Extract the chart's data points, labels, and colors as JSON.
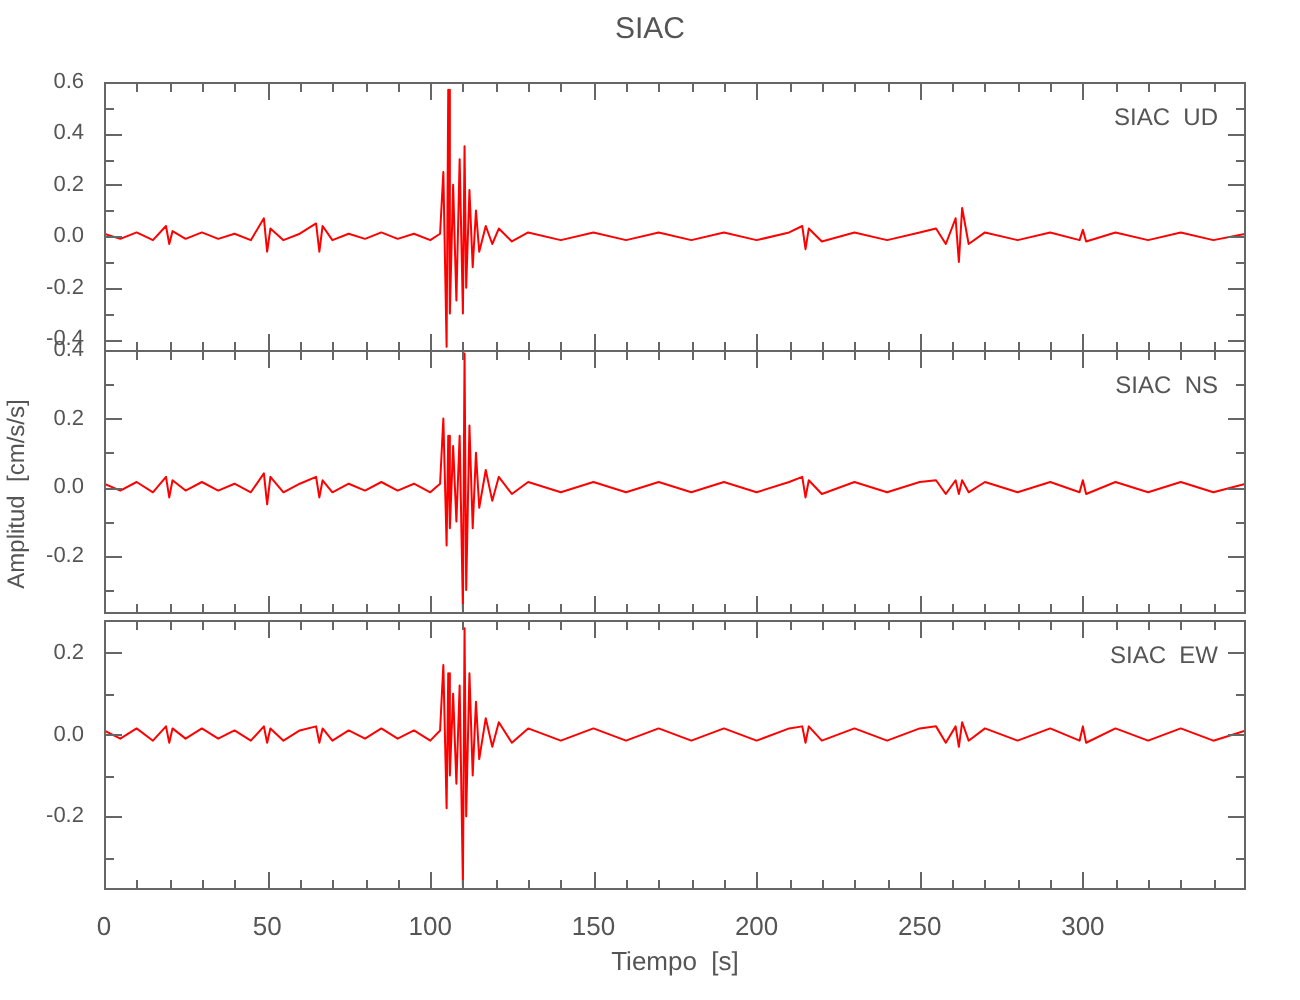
{
  "chart_data": [
    {
      "type": "line",
      "title": "SIAC",
      "annotations": [
        "SIAC  UD"
      ],
      "color": "#ff0000",
      "tick_labels": "y",
      "xlim": [
        0,
        350
      ],
      "xticks": [
        0,
        {
          "value": 10,
          "label": null
        },
        {
          "value": 20,
          "label": null
        },
        {
          "value": 30,
          "label": null
        },
        {
          "value": 40,
          "label": null
        },
        50,
        {
          "value": 60,
          "label": null
        },
        {
          "value": 70,
          "label": null
        },
        {
          "value": 80,
          "label": null
        },
        {
          "value": 90,
          "label": null
        },
        100,
        {
          "value": 110,
          "label": null
        },
        {
          "value": 120,
          "label": null
        },
        {
          "value": 130,
          "label": null
        },
        {
          "value": 140,
          "label": null
        },
        150,
        {
          "value": 160,
          "label": null
        },
        {
          "value": 170,
          "label": null
        },
        {
          "value": 180,
          "label": null
        },
        {
          "value": 190,
          "label": null
        },
        200,
        {
          "value": 210,
          "label": null
        },
        {
          "value": 220,
          "label": null
        },
        {
          "value": 230,
          "label": null
        },
        {
          "value": 240,
          "label": null
        },
        250,
        {
          "value": 260,
          "label": null
        },
        {
          "value": 270,
          "label": null
        },
        {
          "value": 280,
          "label": null
        },
        {
          "value": 290,
          "label": null
        },
        300,
        {
          "value": 310,
          "label": null
        },
        {
          "value": 320,
          "label": null
        },
        {
          "value": 330,
          "label": null
        },
        {
          "value": 340,
          "label": null
        }
      ],
      "ylim": [
        -0.45,
        0.6
      ],
      "yticks": [
        -0.4,
        {
          "value": -0.3,
          "label": null
        },
        -0.2,
        {
          "value": -0.1,
          "label": null
        },
        {
          "value": 0,
          "label": "0.0"
        },
        {
          "value": 0.1,
          "label": null
        },
        0.2,
        {
          "value": 0.3,
          "label": null
        },
        0.4,
        {
          "value": 0.5,
          "label": null
        },
        0.6
      ],
      "x": [
        0,
        5,
        10,
        15,
        19,
        20,
        21,
        25,
        30,
        35,
        40,
        45,
        49,
        50,
        51,
        55,
        60,
        65,
        66,
        67,
        70,
        75,
        80,
        85,
        90,
        95,
        100,
        103,
        104,
        105,
        105.5,
        106,
        107,
        108,
        109,
        110,
        110.5,
        111,
        112,
        113,
        114,
        115,
        117,
        119,
        121,
        125,
        130,
        140,
        150,
        160,
        170,
        180,
        190,
        200,
        210,
        214,
        215,
        216,
        220,
        230,
        240,
        250,
        255,
        258,
        261,
        262,
        263,
        265,
        270,
        280,
        290,
        299,
        300,
        301,
        310,
        320,
        330,
        340,
        350
      ],
      "values": [
        0.01,
        -0.01,
        0.015,
        -0.015,
        0.04,
        -0.03,
        0.02,
        -0.01,
        0.015,
        -0.01,
        0.01,
        -0.015,
        0.07,
        -0.06,
        0.03,
        -0.015,
        0.01,
        0.05,
        -0.06,
        0.04,
        -0.015,
        0.01,
        -0.01,
        0.015,
        -0.01,
        0.01,
        -0.015,
        0.01,
        0.25,
        -0.43,
        0.57,
        -0.3,
        0.2,
        -0.25,
        0.3,
        -0.3,
        0.35,
        -0.2,
        0.18,
        -0.12,
        0.1,
        -0.06,
        0.04,
        -0.03,
        0.03,
        -0.02,
        0.015,
        -0.015,
        0.015,
        -0.015,
        0.015,
        -0.015,
        0.015,
        -0.015,
        0.015,
        0.04,
        -0.05,
        0.03,
        -0.02,
        0.015,
        -0.015,
        0.015,
        0.03,
        -0.03,
        0.07,
        -0.1,
        0.11,
        -0.03,
        0.015,
        -0.015,
        0.015,
        -0.015,
        0.025,
        -0.02,
        0.015,
        -0.015,
        0.015,
        -0.015,
        0.01
      ]
    },
    {
      "type": "line",
      "ylabel": "Amplitud  [cm/s/s]",
      "annotations": [
        "SIAC  NS"
      ],
      "color": "#ff0000",
      "tick_labels": "y",
      "xlim": [
        0,
        350
      ],
      "xticks": [
        0,
        {
          "value": 10,
          "label": null
        },
        {
          "value": 20,
          "label": null
        },
        {
          "value": 30,
          "label": null
        },
        {
          "value": 40,
          "label": null
        },
        50,
        {
          "value": 60,
          "label": null
        },
        {
          "value": 70,
          "label": null
        },
        {
          "value": 80,
          "label": null
        },
        {
          "value": 90,
          "label": null
        },
        100,
        {
          "value": 110,
          "label": null
        },
        {
          "value": 120,
          "label": null
        },
        {
          "value": 130,
          "label": null
        },
        {
          "value": 140,
          "label": null
        },
        150,
        {
          "value": 160,
          "label": null
        },
        {
          "value": 170,
          "label": null
        },
        {
          "value": 180,
          "label": null
        },
        {
          "value": 190,
          "label": null
        },
        200,
        {
          "value": 210,
          "label": null
        },
        {
          "value": 220,
          "label": null
        },
        {
          "value": 230,
          "label": null
        },
        {
          "value": 240,
          "label": null
        },
        250,
        {
          "value": 260,
          "label": null
        },
        {
          "value": 270,
          "label": null
        },
        {
          "value": 280,
          "label": null
        },
        {
          "value": 290,
          "label": null
        },
        300,
        {
          "value": 310,
          "label": null
        },
        {
          "value": 320,
          "label": null
        },
        {
          "value": 330,
          "label": null
        },
        {
          "value": 340,
          "label": null
        }
      ],
      "ylim": [
        -0.37,
        0.4
      ],
      "yticks": [
        {
          "value": -0.3,
          "label": null
        },
        -0.2,
        {
          "value": -0.1,
          "label": null
        },
        {
          "value": 0,
          "label": "0.0"
        },
        {
          "value": 0.1,
          "label": null
        },
        0.2,
        {
          "value": 0.3,
          "label": null
        },
        0.4
      ],
      "x": [
        0,
        5,
        10,
        15,
        19,
        20,
        21,
        25,
        30,
        35,
        40,
        45,
        49,
        50,
        51,
        55,
        60,
        65,
        66,
        67,
        70,
        75,
        80,
        85,
        90,
        95,
        100,
        103,
        104,
        105,
        105.5,
        106,
        107,
        108,
        109,
        110,
        110.5,
        111,
        112,
        113,
        114,
        115,
        117,
        119,
        121,
        125,
        130,
        140,
        150,
        160,
        170,
        180,
        190,
        200,
        210,
        214,
        215,
        216,
        220,
        230,
        240,
        250,
        255,
        258,
        261,
        262,
        263,
        265,
        270,
        280,
        290,
        299,
        300,
        301,
        310,
        320,
        330,
        340,
        350
      ],
      "values": [
        0.01,
        -0.01,
        0.015,
        -0.015,
        0.03,
        -0.03,
        0.02,
        -0.01,
        0.015,
        -0.01,
        0.01,
        -0.015,
        0.04,
        -0.05,
        0.03,
        -0.015,
        0.01,
        0.03,
        -0.03,
        0.02,
        -0.015,
        0.01,
        -0.01,
        0.015,
        -0.01,
        0.01,
        -0.015,
        0.01,
        0.2,
        -0.17,
        0.15,
        -0.12,
        0.12,
        -0.1,
        0.15,
        -0.36,
        0.39,
        -0.3,
        0.18,
        -0.12,
        0.1,
        -0.06,
        0.05,
        -0.04,
        0.03,
        -0.02,
        0.015,
        -0.015,
        0.015,
        -0.015,
        0.015,
        -0.015,
        0.015,
        -0.015,
        0.015,
        0.03,
        -0.03,
        0.02,
        -0.02,
        0.015,
        -0.015,
        0.015,
        0.02,
        -0.02,
        0.02,
        -0.02,
        0.02,
        -0.015,
        0.015,
        -0.015,
        0.015,
        -0.015,
        0.02,
        -0.02,
        0.015,
        -0.015,
        0.015,
        -0.015,
        0.01
      ]
    },
    {
      "type": "line",
      "xlabel": "Tiempo  [s]",
      "annotations": [
        "SIAC  EW"
      ],
      "color": "#ff0000",
      "xlim": [
        0,
        350
      ],
      "xticks": [
        0,
        {
          "value": 10,
          "label": null
        },
        {
          "value": 20,
          "label": null
        },
        {
          "value": 30,
          "label": null
        },
        {
          "value": 40,
          "label": null
        },
        50,
        {
          "value": 60,
          "label": null
        },
        {
          "value": 70,
          "label": null
        },
        {
          "value": 80,
          "label": null
        },
        {
          "value": 90,
          "label": null
        },
        100,
        {
          "value": 110,
          "label": null
        },
        {
          "value": 120,
          "label": null
        },
        {
          "value": 130,
          "label": null
        },
        {
          "value": 140,
          "label": null
        },
        150,
        {
          "value": 160,
          "label": null
        },
        {
          "value": 170,
          "label": null
        },
        {
          "value": 180,
          "label": null
        },
        {
          "value": 190,
          "label": null
        },
        200,
        {
          "value": 210,
          "label": null
        },
        {
          "value": 220,
          "label": null
        },
        {
          "value": 230,
          "label": null
        },
        {
          "value": 240,
          "label": null
        },
        250,
        {
          "value": 260,
          "label": null
        },
        {
          "value": 270,
          "label": null
        },
        {
          "value": 280,
          "label": null
        },
        {
          "value": 290,
          "label": null
        },
        300,
        {
          "value": 310,
          "label": null
        },
        {
          "value": 320,
          "label": null
        },
        {
          "value": 330,
          "label": null
        },
        {
          "value": 340,
          "label": null
        }
      ],
      "ylim": [
        -0.38,
        0.28
      ],
      "yticks": [
        {
          "value": -0.3,
          "label": null
        },
        -0.2,
        {
          "value": -0.1,
          "label": null
        },
        {
          "value": 0,
          "label": "0.0"
        },
        {
          "value": 0.1,
          "label": null
        },
        0.2
      ],
      "x": [
        0,
        5,
        10,
        15,
        19,
        20,
        21,
        25,
        30,
        35,
        40,
        45,
        49,
        50,
        51,
        55,
        60,
        65,
        66,
        67,
        70,
        75,
        80,
        85,
        90,
        95,
        100,
        103,
        104,
        105,
        105.5,
        106,
        107,
        108,
        109,
        110,
        110.5,
        111,
        112,
        113,
        114,
        115,
        117,
        119,
        121,
        125,
        130,
        140,
        150,
        160,
        170,
        180,
        190,
        200,
        210,
        214,
        215,
        216,
        220,
        230,
        240,
        250,
        255,
        258,
        261,
        262,
        263,
        265,
        270,
        280,
        290,
        299,
        300,
        301,
        310,
        320,
        330,
        340,
        350
      ],
      "values": [
        0.01,
        -0.01,
        0.015,
        -0.015,
        0.02,
        -0.02,
        0.015,
        -0.01,
        0.015,
        -0.01,
        0.01,
        -0.015,
        0.02,
        -0.02,
        0.015,
        -0.015,
        0.01,
        0.02,
        -0.02,
        0.015,
        -0.015,
        0.01,
        -0.01,
        0.015,
        -0.01,
        0.01,
        -0.015,
        0.01,
        0.17,
        -0.18,
        0.15,
        -0.1,
        0.1,
        -0.12,
        0.12,
        -0.37,
        0.26,
        -0.2,
        0.15,
        -0.1,
        0.08,
        -0.06,
        0.04,
        -0.03,
        0.03,
        -0.02,
        0.015,
        -0.015,
        0.015,
        -0.015,
        0.015,
        -0.015,
        0.015,
        -0.015,
        0.015,
        0.02,
        -0.02,
        0.02,
        -0.015,
        0.015,
        -0.015,
        0.015,
        0.02,
        -0.02,
        0.02,
        -0.03,
        0.03,
        -0.015,
        0.015,
        -0.015,
        0.015,
        -0.015,
        0.02,
        -0.02,
        0.015,
        -0.015,
        0.015,
        -0.015,
        0.01
      ]
    }
  ]
}
